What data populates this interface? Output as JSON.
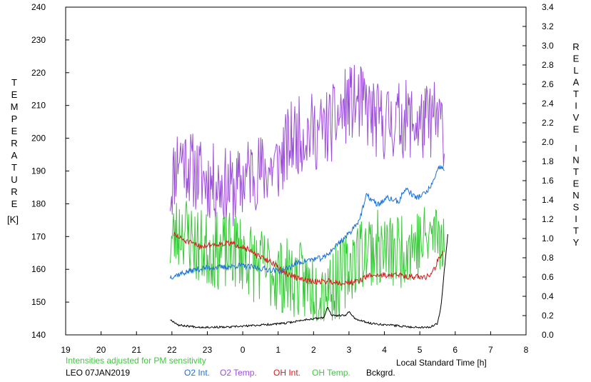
{
  "chart_data": {
    "type": "line",
    "left_axis": {
      "label_letters": [
        "T",
        "E",
        "M",
        "P",
        "E",
        "R",
        "A",
        "T",
        "U",
        "R",
        "E"
      ],
      "unit": "[K]",
      "range": [
        140,
        240
      ],
      "ticks": [
        "140",
        "150",
        "160",
        "170",
        "180",
        "190",
        "200",
        "210",
        "220",
        "230",
        "240"
      ]
    },
    "right_axis": {
      "label_top": [
        "R",
        "E",
        "L",
        "A",
        "T",
        "I",
        "V",
        "E"
      ],
      "label_bottom": [
        "I",
        "N",
        "T",
        "E",
        "N",
        "S",
        "I",
        "T",
        "Y"
      ],
      "range": [
        0.0,
        3.4
      ],
      "ticks": [
        "0.0",
        "0.2",
        "0.4",
        "0.6",
        "0.8",
        "1.0",
        "1.2",
        "1.4",
        "1.6",
        "1.8",
        "2.0",
        "2.2",
        "2.4",
        "2.6",
        "2.8",
        "3.0",
        "3.2",
        "3.4"
      ]
    },
    "x_axis": {
      "label": "Local Standard Time [h]",
      "range": [
        19,
        32
      ],
      "ticks": [
        "19",
        "20",
        "21",
        "22",
        "23",
        "0",
        "1",
        "2",
        "3",
        "4",
        "5",
        "6",
        "7",
        "8"
      ]
    },
    "note": "Intensities adjusted for PM sensitivity",
    "station": "LEO 07JAN2019",
    "legend": [
      {
        "label": "O2 Int.",
        "color": "#1a6fd6"
      },
      {
        "label": "O2 Temp.",
        "color": "#9b4fd8"
      },
      {
        "label": "OH Int.",
        "color": "#d61a1a"
      },
      {
        "label": "OH Temp.",
        "color": "#3cc83c"
      },
      {
        "label": "Bckgrd.",
        "color": "#000000"
      }
    ],
    "series": [
      {
        "name": "O2 Temp.",
        "axis": "left",
        "color": "#9b4fd8",
        "noise": 12,
        "seed": 11,
        "points": [
          [
            21.95,
            184
          ],
          [
            22.2,
            196
          ],
          [
            22.6,
            190
          ],
          [
            23.0,
            187
          ],
          [
            23.4,
            186
          ],
          [
            23.8,
            184
          ],
          [
            24.2,
            190
          ],
          [
            24.6,
            190
          ],
          [
            25.0,
            192
          ],
          [
            25.4,
            200
          ],
          [
            25.8,
            202
          ],
          [
            26.2,
            202
          ],
          [
            26.6,
            205
          ],
          [
            27.0,
            211
          ],
          [
            27.4,
            210
          ],
          [
            27.8,
            205
          ],
          [
            28.2,
            205
          ],
          [
            28.6,
            206
          ],
          [
            29.0,
            204
          ],
          [
            29.4,
            206
          ],
          [
            29.7,
            203
          ]
        ]
      },
      {
        "name": "OH Temp.",
        "axis": "left",
        "color": "#3cc83c",
        "noise": 12,
        "seed": 23,
        "points": [
          [
            21.95,
            168
          ],
          [
            22.3,
            173
          ],
          [
            22.7,
            167
          ],
          [
            23.1,
            166
          ],
          [
            23.5,
            165
          ],
          [
            23.9,
            166
          ],
          [
            24.3,
            162
          ],
          [
            24.7,
            160
          ],
          [
            25.1,
            158
          ],
          [
            25.5,
            157
          ],
          [
            25.9,
            155
          ],
          [
            26.3,
            155
          ],
          [
            26.7,
            156
          ],
          [
            27.1,
            163
          ],
          [
            27.5,
            167
          ],
          [
            27.9,
            166
          ],
          [
            28.3,
            165
          ],
          [
            28.7,
            168
          ],
          [
            29.1,
            168
          ],
          [
            29.4,
            171
          ],
          [
            29.7,
            171
          ]
        ]
      },
      {
        "name": "O2 Int.",
        "axis": "right",
        "color": "#1a6fd6",
        "noise": 0.03,
        "seed": 37,
        "points": [
          [
            21.95,
            0.6
          ],
          [
            22.3,
            0.64
          ],
          [
            22.7,
            0.68
          ],
          [
            23.1,
            0.7
          ],
          [
            23.5,
            0.7
          ],
          [
            23.9,
            0.72
          ],
          [
            24.3,
            0.7
          ],
          [
            24.7,
            0.68
          ],
          [
            25.1,
            0.66
          ],
          [
            25.5,
            0.74
          ],
          [
            25.9,
            0.78
          ],
          [
            26.3,
            0.8
          ],
          [
            26.7,
            0.95
          ],
          [
            27.0,
            1.05
          ],
          [
            27.3,
            1.2
          ],
          [
            27.5,
            1.45
          ],
          [
            27.8,
            1.35
          ],
          [
            28.1,
            1.42
          ],
          [
            28.4,
            1.38
          ],
          [
            28.6,
            1.52
          ],
          [
            28.9,
            1.42
          ],
          [
            29.2,
            1.48
          ],
          [
            29.4,
            1.6
          ],
          [
            29.55,
            1.74
          ],
          [
            29.7,
            1.72
          ]
        ]
      },
      {
        "name": "OH Int.",
        "axis": "right",
        "color": "#d61a1a",
        "noise": 0.03,
        "seed": 51,
        "points": [
          [
            22.05,
            1.04
          ],
          [
            22.4,
            0.97
          ],
          [
            22.8,
            0.92
          ],
          [
            23.2,
            0.94
          ],
          [
            23.6,
            0.95
          ],
          [
            24.0,
            0.92
          ],
          [
            24.4,
            0.82
          ],
          [
            24.8,
            0.76
          ],
          [
            25.2,
            0.64
          ],
          [
            25.6,
            0.58
          ],
          [
            26.0,
            0.55
          ],
          [
            26.4,
            0.56
          ],
          [
            26.8,
            0.54
          ],
          [
            27.2,
            0.55
          ],
          [
            27.6,
            0.62
          ],
          [
            28.0,
            0.62
          ],
          [
            28.4,
            0.62
          ],
          [
            28.8,
            0.6
          ],
          [
            29.2,
            0.6
          ],
          [
            29.4,
            0.68
          ],
          [
            29.55,
            0.8
          ],
          [
            29.65,
            0.86
          ]
        ]
      },
      {
        "name": "Bckgrd.",
        "axis": "right",
        "color": "#000000",
        "noise": 0.01,
        "seed": 67,
        "points": [
          [
            21.95,
            0.16
          ],
          [
            22.2,
            0.1
          ],
          [
            22.8,
            0.08
          ],
          [
            23.6,
            0.08
          ],
          [
            24.4,
            0.1
          ],
          [
            25.2,
            0.12
          ],
          [
            25.8,
            0.16
          ],
          [
            26.3,
            0.18
          ],
          [
            26.4,
            0.3
          ],
          [
            26.5,
            0.2
          ],
          [
            26.9,
            0.2
          ],
          [
            27.0,
            0.24
          ],
          [
            27.2,
            0.16
          ],
          [
            27.6,
            0.12
          ],
          [
            28.2,
            0.1
          ],
          [
            28.8,
            0.08
          ],
          [
            29.3,
            0.08
          ],
          [
            29.5,
            0.12
          ],
          [
            29.6,
            0.3
          ],
          [
            29.7,
            0.7
          ],
          [
            29.8,
            1.08
          ]
        ]
      }
    ]
  }
}
